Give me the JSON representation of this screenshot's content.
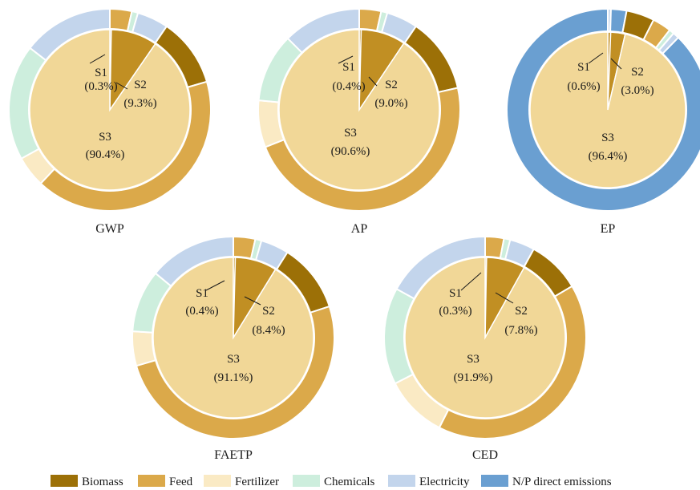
{
  "colors": {
    "Biomass": "#9c7007",
    "Feed": "#dba94a",
    "Fertilizer": "#faeac4",
    "Chemicals": "#cdeedd",
    "Electricity": "#c3d5ec",
    "N/P direct emissions": "#6a9fd1",
    "S1": "#c18f23",
    "S2": "#c18f23",
    "S3": "#f1d797"
  },
  "chart_data": [
    {
      "type": "pie",
      "title": "GWP",
      "inner": [
        {
          "label": "S1",
          "pct_label": "(0.3%)",
          "value": 0.3
        },
        {
          "label": "S2",
          "pct_label": "(9.3%)",
          "value": 9.3
        },
        {
          "label": "S3",
          "pct_label": "(90.4%)",
          "value": 90.4
        }
      ],
      "outer": [
        {
          "name": "Feed",
          "value": 3.5
        },
        {
          "name": "Chemicals",
          "value": 1.0
        },
        {
          "name": "Electricity",
          "value": 5.0
        },
        {
          "name": "Biomass",
          "value": 11.0
        },
        {
          "name": "Feed",
          "value": 41.5
        },
        {
          "name": "Fertilizer",
          "value": 5.0
        },
        {
          "name": "Chemicals",
          "value": 18.5
        },
        {
          "name": "Electricity",
          "value": 14.5
        }
      ]
    },
    {
      "type": "pie",
      "title": "AP",
      "inner": [
        {
          "label": "S1",
          "pct_label": "(0.4%)",
          "value": 0.4
        },
        {
          "label": "S2",
          "pct_label": "(9.0%)",
          "value": 9.0
        },
        {
          "label": "S3",
          "pct_label": "(90.6%)",
          "value": 90.6
        }
      ],
      "outer": [
        {
          "name": "Feed",
          "value": 3.5
        },
        {
          "name": "Chemicals",
          "value": 1.0
        },
        {
          "name": "Electricity",
          "value": 5.0
        },
        {
          "name": "Biomass",
          "value": 12.0
        },
        {
          "name": "Feed",
          "value": 47.5
        },
        {
          "name": "Fertilizer",
          "value": 7.5
        },
        {
          "name": "Chemicals",
          "value": 11.0
        },
        {
          "name": "Electricity",
          "value": 12.5
        }
      ]
    },
    {
      "type": "pie",
      "title": "EP",
      "inner": [
        {
          "label": "S1",
          "pct_label": "(0.6%)",
          "value": 0.6
        },
        {
          "label": "S2",
          "pct_label": "(3.0%)",
          "value": 3.0
        },
        {
          "label": "S3",
          "pct_label": "(96.4%)",
          "value": 96.4
        }
      ],
      "outer": [
        {
          "name": "Electricity",
          "value": 0.5
        },
        {
          "name": "N/P direct emissions",
          "value": 2.5
        },
        {
          "name": "Biomass",
          "value": 4.5
        },
        {
          "name": "Feed",
          "value": 3.0
        },
        {
          "name": "Chemicals",
          "value": 0.8
        },
        {
          "name": "Electricity",
          "value": 1.0
        },
        {
          "name": "N/P direct emissions",
          "value": 87.7
        }
      ]
    },
    {
      "type": "pie",
      "title": "FAETP",
      "inner": [
        {
          "label": "S1",
          "pct_label": "(0.4%)",
          "value": 0.4
        },
        {
          "label": "S2",
          "pct_label": "(8.4%)",
          "value": 8.4
        },
        {
          "label": "S3",
          "pct_label": "(91.1%)",
          "value": 91.1
        }
      ],
      "outer": [
        {
          "name": "Feed",
          "value": 3.5
        },
        {
          "name": "Chemicals",
          "value": 1.0
        },
        {
          "name": "Electricity",
          "value": 4.5
        },
        {
          "name": "Biomass",
          "value": 11.0
        },
        {
          "name": "Feed",
          "value": 50.5
        },
        {
          "name": "Fertilizer",
          "value": 5.5
        },
        {
          "name": "Chemicals",
          "value": 10.0
        },
        {
          "name": "Electricity",
          "value": 14.0
        }
      ]
    },
    {
      "type": "pie",
      "title": "CED",
      "inner": [
        {
          "label": "S1",
          "pct_label": "(0.3%)",
          "value": 0.3
        },
        {
          "label": "S2",
          "pct_label": "(7.8%)",
          "value": 7.8
        },
        {
          "label": "S3",
          "pct_label": "(91.9%)",
          "value": 91.9
        }
      ],
      "outer": [
        {
          "name": "Feed",
          "value": 3.0
        },
        {
          "name": "Chemicals",
          "value": 1.0
        },
        {
          "name": "Electricity",
          "value": 4.0
        },
        {
          "name": "Biomass",
          "value": 8.5
        },
        {
          "name": "Feed",
          "value": 41.0
        },
        {
          "name": "Fertilizer",
          "value": 10.0
        },
        {
          "name": "Chemicals",
          "value": 15.5
        },
        {
          "name": "Electricity",
          "value": 17.0
        }
      ]
    }
  ],
  "legend": [
    "Biomass",
    "Feed",
    "Fertilizer",
    "Chemicals",
    "Electricity",
    "N/P direct emissions"
  ]
}
